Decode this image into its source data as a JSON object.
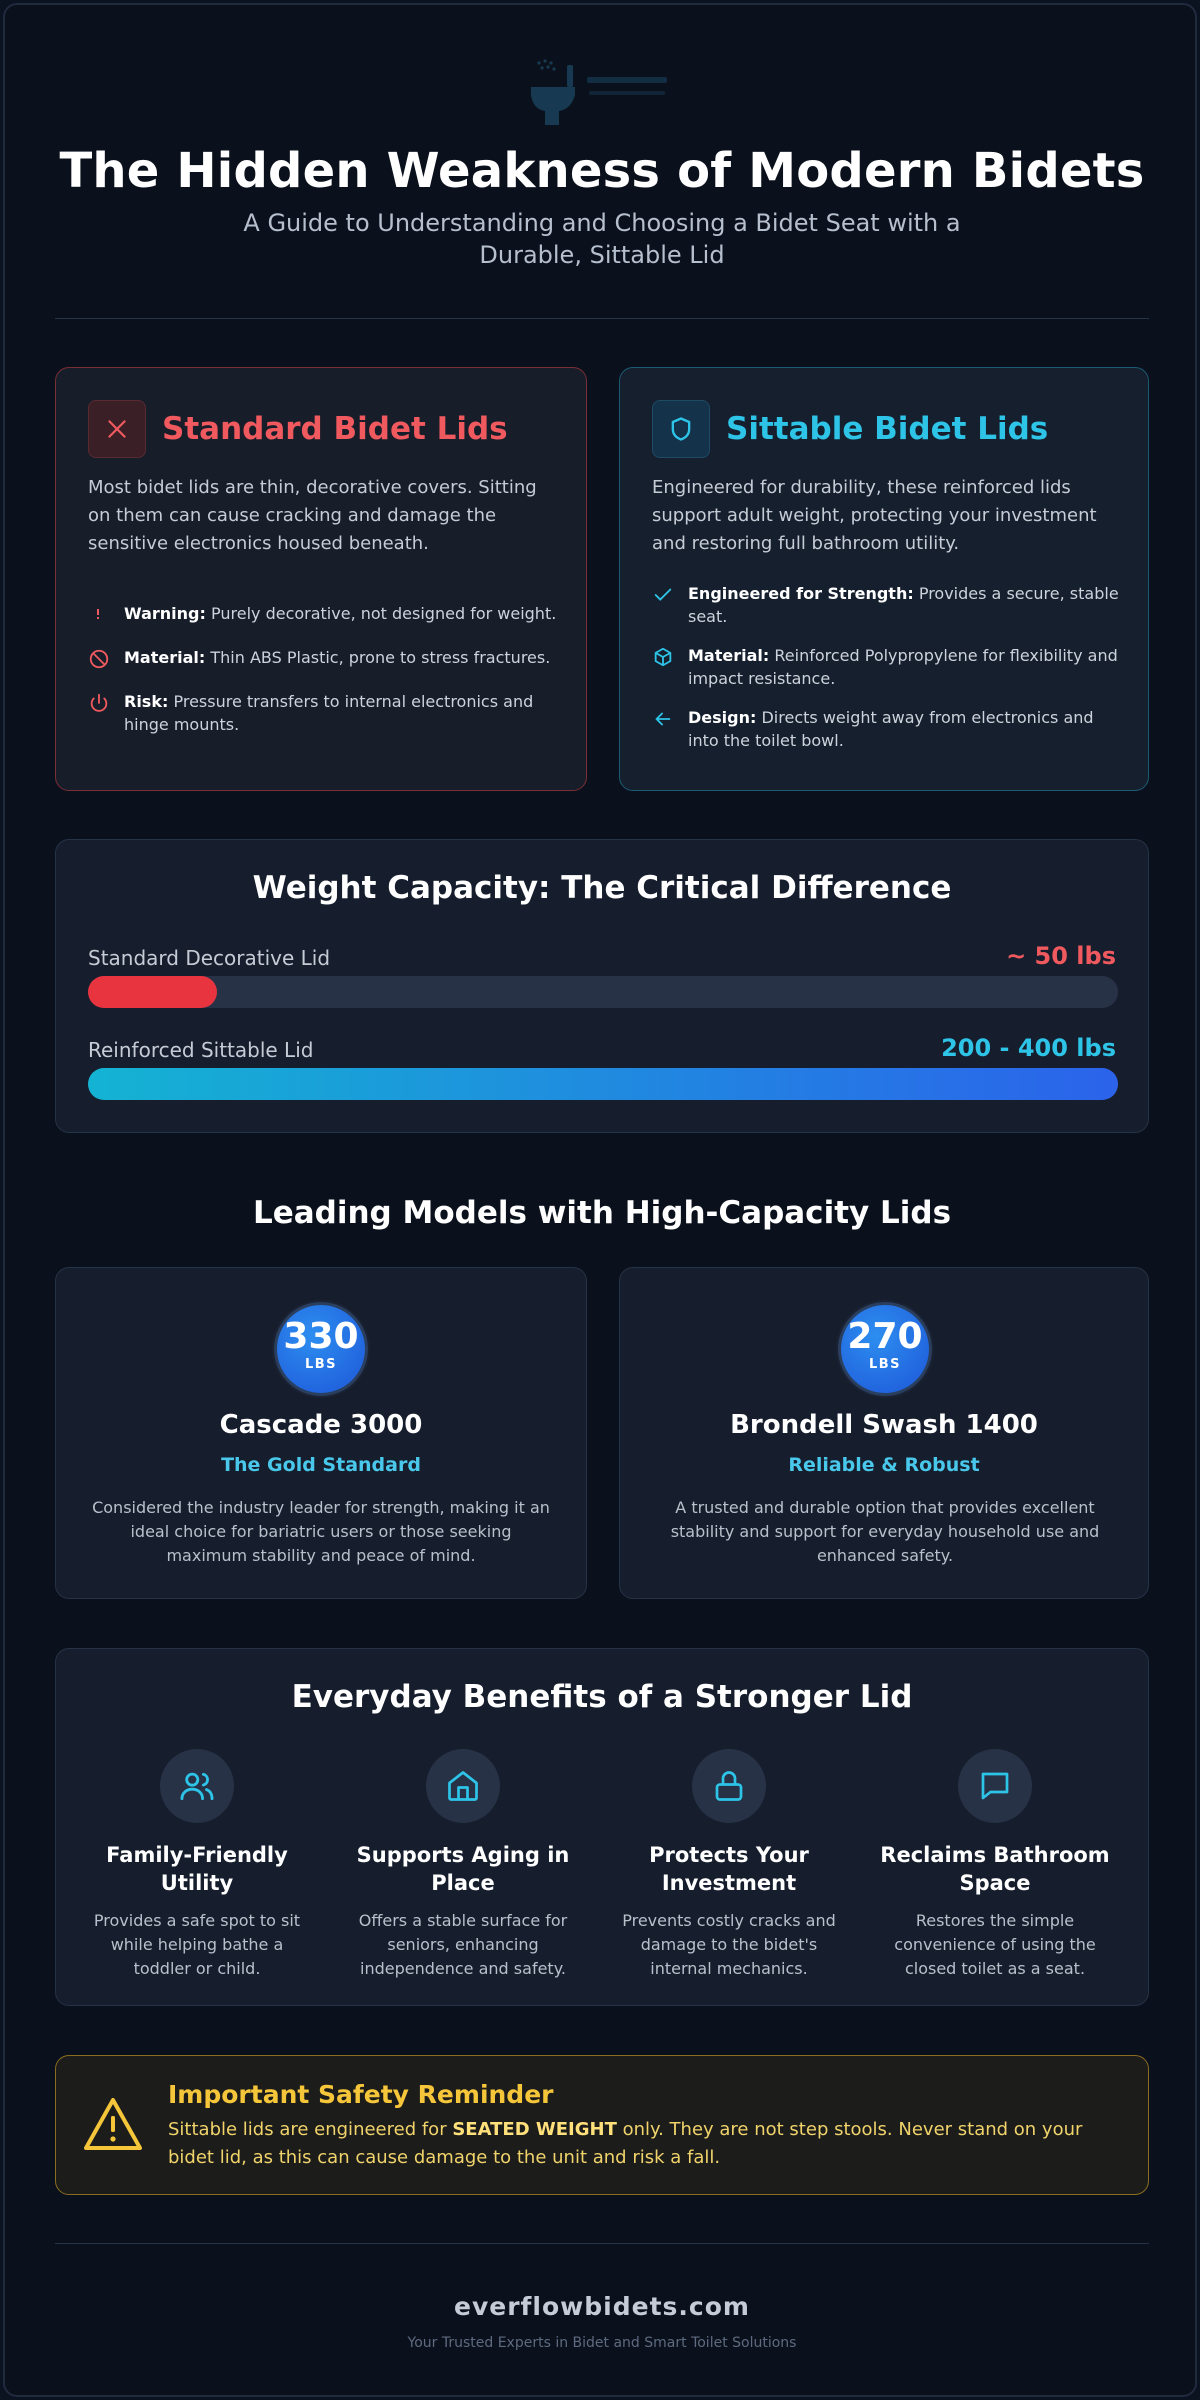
{
  "header": {
    "title": "The Hidden Weakness of Modern Bidets",
    "subtitle": "A Guide to Understanding and Choosing a Bidet Seat with a Durable, Sittable Lid"
  },
  "standard_card": {
    "title": "Standard Bidet Lids",
    "icon": "x-icon",
    "description": "Most bidet lids are thin, decorative covers. Sitting on them can cause cracking and damage the sensitive electronics housed beneath.",
    "features": [
      {
        "label": "Warning:",
        "text": "Purely decorative, not designed for weight.",
        "icon": "exclamation-icon"
      },
      {
        "label": "Material:",
        "text": "Thin ABS Plastic, prone to stress fractures.",
        "icon": "ban-icon"
      },
      {
        "label": "Risk:",
        "text": "Pressure transfers to internal electronics and hinge mounts.",
        "icon": "power-icon"
      }
    ]
  },
  "sittable_card": {
    "title": "Sittable Bidet Lids",
    "icon": "shield-icon",
    "description": "Engineered for durability, these reinforced lids support adult weight, protecting your investment and restoring full bathroom utility.",
    "features": [
      {
        "label": "Engineered for Strength:",
        "text": "Provides a secure, stable seat.",
        "icon": "check-icon"
      },
      {
        "label": "Material:",
        "text": "Reinforced Polypropylene for flexibility and impact resistance.",
        "icon": "cube-icon"
      },
      {
        "label": "Design:",
        "text": "Directs weight away from electronics and into the toilet bowl.",
        "icon": "arrow-left-icon"
      }
    ]
  },
  "weight": {
    "title": "Weight Capacity: The Critical Difference",
    "bars": [
      {
        "label": "Standard Decorative Lid",
        "value": "~ 50 lbs",
        "fill_fraction": 0.125,
        "color": "#e8343f"
      },
      {
        "label": "Reinforced Sittable Lid",
        "value": "200 - 400 lbs",
        "fill_fraction": 1.0,
        "color": "#2ec4e8"
      }
    ]
  },
  "models": {
    "title": "Leading Models with High-Capacity Lids",
    "items": [
      {
        "capacity": "330",
        "unit": "LBS",
        "name": "Cascade 3000",
        "tag": "The Gold Standard",
        "description": "Considered the industry leader for strength, making it an ideal choice for bariatric users or those seeking maximum stability and peace of mind."
      },
      {
        "capacity": "270",
        "unit": "LBS",
        "name": "Brondell Swash 1400",
        "tag": "Reliable & Robust",
        "description": "A trusted and durable option that provides excellent stability and support for everyday household use and enhanced safety."
      }
    ]
  },
  "benefits": {
    "title": "Everyday Benefits of a Stronger Lid",
    "items": [
      {
        "icon": "users-icon",
        "title": "Family-Friendly Utility",
        "description": "Provides a safe spot to sit while helping bathe a toddler or child."
      },
      {
        "icon": "home-icon",
        "title": "Supports Aging in Place",
        "description": "Offers a stable surface for seniors, enhancing independence and safety."
      },
      {
        "icon": "lock-icon",
        "title": "Protects Your Investment",
        "description": "Prevents costly cracks and damage to the bidet's internal mechanics."
      },
      {
        "icon": "chat-icon",
        "title": "Reclaims Bathroom Space",
        "description": "Restores the simple convenience of using the closed toilet as a seat."
      }
    ]
  },
  "safety": {
    "icon": "warning-triangle-icon",
    "title": "Important Safety Reminder",
    "text_before": "Sittable lids are engineered for ",
    "emphasis": "SEATED WEIGHT",
    "text_after": " only. They are not step stools. Never stand on your bidet lid, as this can cause damage to the unit and risk a fall."
  },
  "footer": {
    "url": "everflowbidets.com",
    "tagline": "Your Trusted Experts in Bidet and Smart Toilet Solutions"
  },
  "colors": {
    "red": "#f05a5f",
    "cyan": "#2ec4e8",
    "gold": "#f6c63a",
    "background": "#0b111c"
  }
}
